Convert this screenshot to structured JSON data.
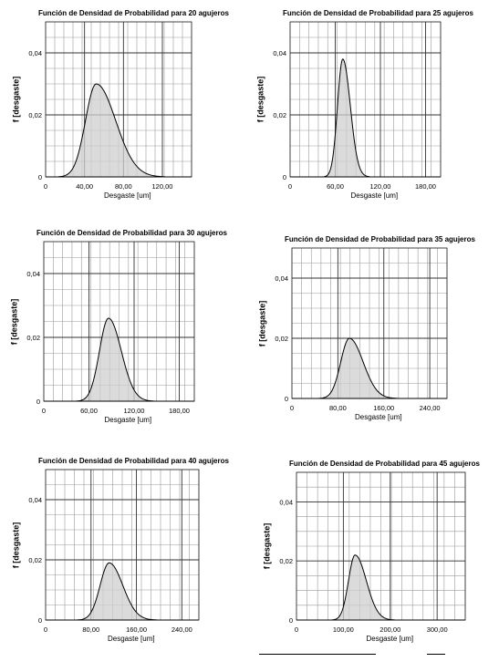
{
  "chart_data": [
    {
      "type": "area",
      "title": "Función  de Densidad de Probabilidad para 20 agujeros",
      "xlabel": "Desgaste [um]",
      "ylabel": "f [desgaste]",
      "xlim": [
        0,
        150
      ],
      "ylim": [
        0,
        0.05
      ],
      "xticks": [
        0,
        40,
        80,
        120
      ],
      "xtick_labels": [
        "0",
        "40,00",
        "80,00",
        "120,00"
      ],
      "yticks": [
        0,
        0.02,
        0.04
      ],
      "ytick_labels": [
        "0",
        "0,02",
        "0,04"
      ],
      "distribution": {
        "mode": 52,
        "peak": 0.03,
        "sigma_left": 11,
        "sigma_right": 20
      },
      "grid": true
    },
    {
      "type": "area",
      "title": "Función  de Densidad de Probabilidad para 25 agujeros",
      "xlabel": "Desgaste [um]",
      "ylabel": "f [desgaste]",
      "xlim": [
        0,
        200
      ],
      "ylim": [
        0,
        0.05
      ],
      "xticks": [
        0,
        60,
        120,
        180
      ],
      "xtick_labels": [
        "0",
        "60,00",
        "120,00",
        "180,00"
      ],
      "yticks": [
        0,
        0.02,
        0.04
      ],
      "ytick_labels": [
        "0",
        "0,02",
        "0,04"
      ],
      "distribution": {
        "mode": 70,
        "peak": 0.038,
        "sigma_left": 7,
        "sigma_right": 10
      },
      "grid": true
    },
    {
      "type": "area",
      "title": "Función  de Densidad de Probabilidad para 30 agujeros",
      "xlabel": "Desgaste [um]",
      "ylabel": "f [desgaste]",
      "xlim": [
        0,
        200
      ],
      "ylim": [
        0,
        0.05
      ],
      "xticks": [
        0,
        60,
        120,
        180
      ],
      "xtick_labels": [
        "0",
        "60,00",
        "120,00",
        "180,00"
      ],
      "yticks": [
        0,
        0.02,
        0.04
      ],
      "ytick_labels": [
        "0",
        "0,02",
        "0,04"
      ],
      "distribution": {
        "mode": 86,
        "peak": 0.026,
        "sigma_left": 12,
        "sigma_right": 17
      },
      "grid": true
    },
    {
      "type": "area",
      "title": "Función  de Densidad de Probabilidad para 35 agujeros",
      "xlabel": "Desgaste  [um]",
      "ylabel": "f [desgaste]",
      "xlim": [
        0,
        270
      ],
      "ylim": [
        0,
        0.05
      ],
      "xticks": [
        0,
        80,
        160,
        240
      ],
      "xtick_labels": [
        "0",
        "80,00",
        "160,00",
        "240,00"
      ],
      "yticks": [
        0,
        0.02,
        0.04
      ],
      "ytick_labels": [
        "0",
        "0,02",
        "0,04"
      ],
      "distribution": {
        "mode": 100,
        "peak": 0.02,
        "sigma_left": 15,
        "sigma_right": 24
      },
      "grid": true
    },
    {
      "type": "area",
      "title": "Función  de Densidad de Probabilidad para 40 agujeros",
      "xlabel": "Desgaste  [um]",
      "ylabel": "f [desgaste]",
      "xlim": [
        0,
        270
      ],
      "ylim": [
        0,
        0.05
      ],
      "xticks": [
        0,
        80,
        160,
        240
      ],
      "xtick_labels": [
        "0",
        "80,00",
        "160,00",
        "240,00"
      ],
      "yticks": [
        0,
        0.02,
        0.04
      ],
      "ytick_labels": [
        "0",
        "0,02",
        "0,04"
      ],
      "distribution": {
        "mode": 112,
        "peak": 0.019,
        "sigma_left": 16,
        "sigma_right": 24
      },
      "grid": true
    },
    {
      "type": "area",
      "title": "Función  de Densidad de Probabilidad para 45 agujeros",
      "xlabel": "Desgaste [um]",
      "ylabel": "f [desgaste]",
      "xlim": [
        0,
        360
      ],
      "ylim": [
        0,
        0.05
      ],
      "xticks": [
        0,
        100,
        200,
        300
      ],
      "xtick_labels": [
        "0",
        "100,00",
        "200,00",
        "300,00"
      ],
      "yticks": [
        0,
        0.02,
        0.04
      ],
      "ytick_labels": [
        "0",
        "0,02",
        "0,04"
      ],
      "distribution": {
        "mode": 125,
        "peak": 0.022,
        "sigma_left": 14,
        "sigma_right": 24
      },
      "grid": true
    }
  ]
}
